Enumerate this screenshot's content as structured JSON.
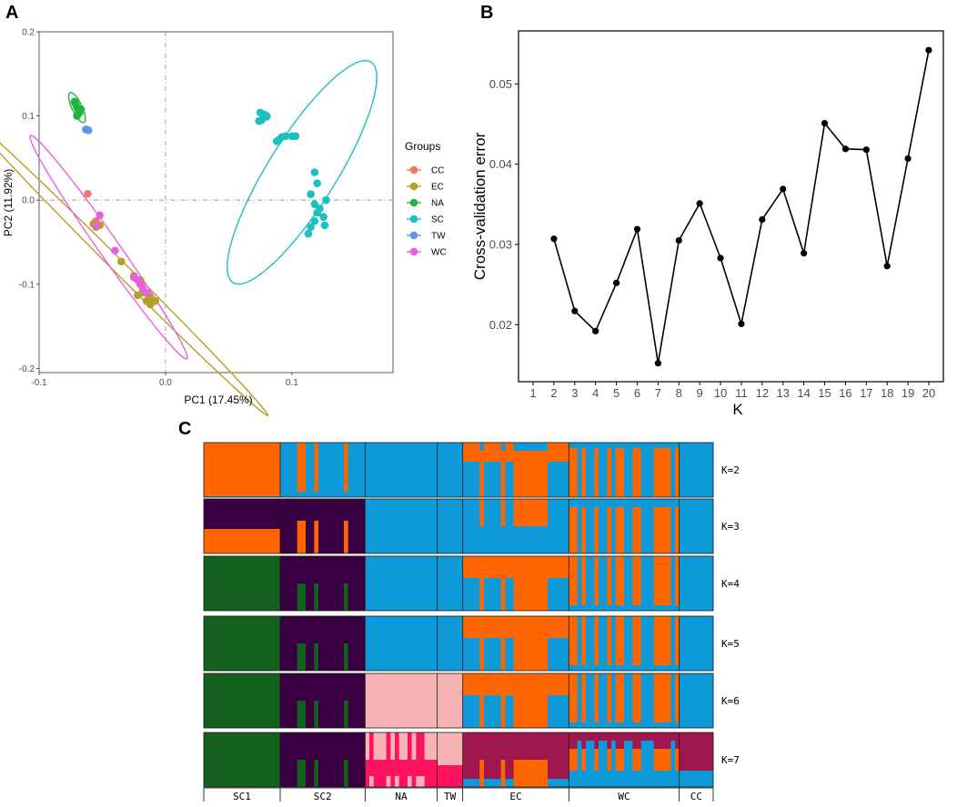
{
  "figure_letters": {
    "a": "A",
    "b": "B",
    "c": "C"
  },
  "colors": {
    "orange": "#ff6600",
    "blue": "#0e9ad9",
    "purple": "#380040",
    "green": "#14601e",
    "pink": "#f8b4b4",
    "hotpink": "#ff1360",
    "maroon": "#a0164f"
  },
  "chart_data": [
    {
      "id": "A",
      "type": "scatter",
      "title": "",
      "xlabel": "PC1 (17.45%)",
      "ylabel": "PC2 (11.92%)",
      "xlim": [
        -0.1,
        0.18
      ],
      "ylim": [
        -0.205,
        0.2
      ],
      "xticks": [
        -0.1,
        0.0,
        0.1
      ],
      "xtick_labels": [
        "-0.1",
        "0.0",
        "0.1"
      ],
      "yticks": [
        -0.2,
        -0.1,
        0.0,
        0.1,
        0.2
      ],
      "ytick_labels": [
        "-0.2",
        "-0.1",
        "0.0",
        "0.1",
        "0.2"
      ],
      "grid": false,
      "legend_title": "Groups",
      "legend_position": "right",
      "series": [
        {
          "name": "CC",
          "color": "#f07868",
          "points": [
            [
              -0.0615,
              0.0075
            ],
            [
              -0.055,
              -0.025
            ]
          ]
        },
        {
          "name": "EC",
          "color": "#b5a020",
          "points": [
            [
              -0.057,
              -0.028
            ],
            [
              -0.055,
              -0.032
            ],
            [
              -0.052,
              -0.03
            ],
            [
              -0.035,
              -0.073
            ],
            [
              -0.025,
              -0.09
            ],
            [
              -0.02,
              -0.095
            ],
            [
              -0.018,
              -0.11
            ],
            [
              -0.013,
              -0.115
            ],
            [
              -0.01,
              -0.12
            ],
            [
              -0.022,
              -0.113
            ],
            [
              -0.015,
              -0.12
            ],
            [
              -0.02,
              -0.1
            ],
            [
              -0.008,
              -0.12
            ],
            [
              -0.012,
              -0.124
            ]
          ]
        },
        {
          "name": "NA",
          "color": "#22b340",
          "points": [
            [
              -0.071,
              0.114
            ],
            [
              -0.07,
              0.11
            ],
            [
              -0.069,
              0.107
            ],
            [
              -0.072,
              0.117
            ],
            [
              -0.068,
              0.104
            ],
            [
              -0.07,
              0.1
            ],
            [
              -0.067,
              0.108
            ]
          ]
        },
        {
          "name": "SC",
          "color": "#1ebfbf",
          "points": [
            [
              0.075,
              0.104
            ],
            [
              0.078,
              0.102
            ],
            [
              0.08,
              0.099
            ],
            [
              0.076,
              0.095
            ],
            [
              0.08,
              0.1
            ],
            [
              0.074,
              0.094
            ],
            [
              0.09,
              0.072
            ],
            [
              0.095,
              0.076
            ],
            [
              0.1,
              0.076
            ],
            [
              0.103,
              0.076
            ],
            [
              0.092,
              0.075
            ],
            [
              0.088,
              0.07
            ],
            [
              0.118,
              0.033
            ],
            [
              0.12,
              0.02
            ],
            [
              0.115,
              0.007
            ],
            [
              0.118,
              -0.005
            ],
            [
              0.12,
              -0.015
            ],
            [
              0.118,
              -0.025
            ],
            [
              0.115,
              -0.032
            ],
            [
              0.113,
              -0.04
            ],
            [
              0.125,
              -0.02
            ],
            [
              0.127,
              0.0
            ],
            [
              0.122,
              -0.01
            ],
            [
              0.126,
              -0.03
            ]
          ]
        },
        {
          "name": "TW",
          "color": "#5a96f0",
          "points": [
            [
              -0.061,
              0.083
            ],
            [
              -0.063,
              0.084
            ]
          ]
        },
        {
          "name": "WC",
          "color": "#e85fe0",
          "points": [
            [
              -0.052,
              -0.018
            ],
            [
              -0.055,
              -0.03
            ],
            [
              -0.04,
              -0.06
            ],
            [
              -0.022,
              -0.095
            ],
            [
              -0.02,
              -0.1
            ],
            [
              -0.018,
              -0.105
            ],
            [
              -0.025,
              -0.092
            ],
            [
              -0.015,
              -0.11
            ]
          ]
        }
      ],
      "ellipses": [
        {
          "name": "SC",
          "center": [
            0.108,
            0.033
          ],
          "semi_major": 0.103,
          "semi_minor": 0.027,
          "angle_deg": 58
        },
        {
          "name": "EC",
          "center": [
            -0.035,
            -0.082
          ],
          "semi_major": 0.164,
          "semi_minor": 0.005,
          "angle_deg": -45
        },
        {
          "name": "WC",
          "center": [
            -0.045,
            -0.056
          ],
          "semi_major": 0.108,
          "semi_minor": 0.008,
          "angle_deg": -55
        },
        {
          "name": "NA",
          "center": [
            -0.07,
            0.11
          ],
          "semi_major": 0.013,
          "semi_minor": 0.004,
          "angle_deg": -65
        }
      ]
    },
    {
      "id": "B",
      "type": "line",
      "xlabel": "K",
      "ylabel": "Cross-validation error",
      "xlim": [
        0.3,
        20.7
      ],
      "ylim": [
        0.0129,
        0.0566
      ],
      "xticks": [
        1,
        2,
        3,
        4,
        5,
        6,
        7,
        8,
        9,
        10,
        11,
        12,
        13,
        14,
        15,
        16,
        17,
        18,
        19,
        20
      ],
      "xtick_labels": [
        "1",
        "2",
        "3",
        "4",
        "5",
        "6",
        "7",
        "8",
        "9",
        "10",
        "11",
        "12",
        "13",
        "14",
        "15",
        "16",
        "17",
        "18",
        "19",
        "20"
      ],
      "yticks": [
        0.02,
        0.03,
        0.04,
        0.05
      ],
      "ytick_labels": [
        "0.02",
        "0.03",
        "0.04",
        "0.05"
      ],
      "x": [
        2,
        3,
        4,
        5,
        6,
        7,
        8,
        9,
        10,
        11,
        12,
        13,
        14,
        15,
        16,
        17,
        18,
        19,
        20
      ],
      "values": [
        0.0307,
        0.0217,
        0.0192,
        0.0252,
        0.0319,
        0.0152,
        0.0305,
        0.0351,
        0.0283,
        0.0201,
        0.0331,
        0.0369,
        0.0289,
        0.0451,
        0.0419,
        0.0418,
        0.0273,
        0.0407,
        0.0542
      ]
    },
    {
      "id": "C",
      "type": "bar",
      "stacked": true,
      "description": "ADMIXTURE ancestry proportions per individual, K=2 to K=7",
      "groups": [
        {
          "name": "SC1",
          "n": 18
        },
        {
          "name": "SC2",
          "n": 20
        },
        {
          "name": "NA",
          "n": 17
        },
        {
          "name": "TW",
          "n": 6
        },
        {
          "name": "EC",
          "n": 25
        },
        {
          "name": "WC",
          "n": 26
        },
        {
          "name": "CC",
          "n": 8
        }
      ],
      "k_labels": [
        "K=2",
        "K=3",
        "K=4",
        "K=5",
        "K=6",
        "K=7"
      ]
    }
  ]
}
